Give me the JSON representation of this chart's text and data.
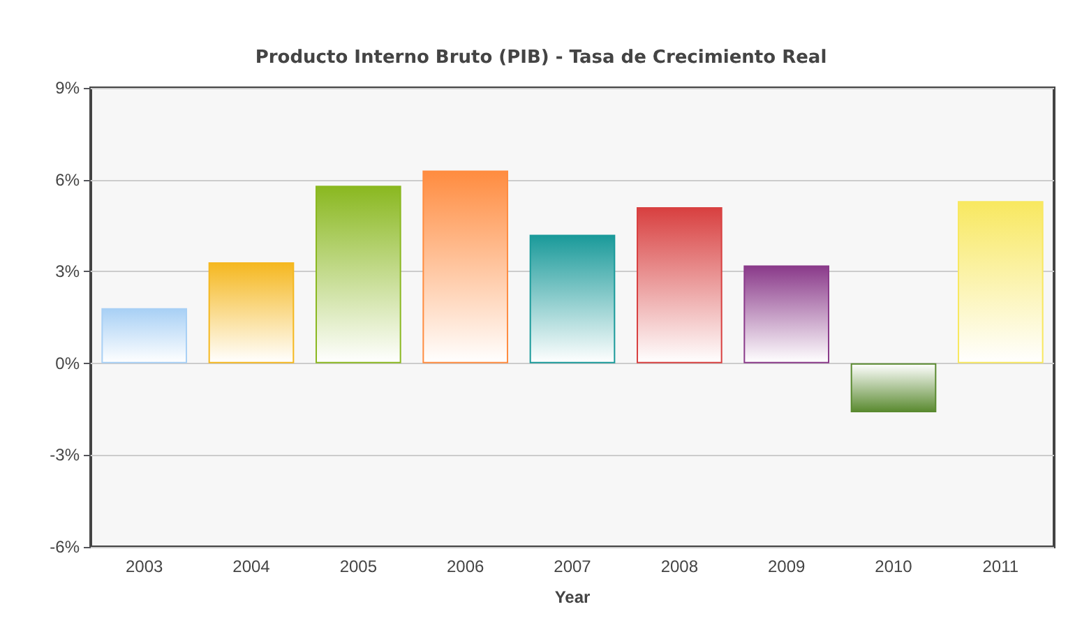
{
  "chart_data": {
    "type": "bar",
    "title": "Producto Interno Bruto (PIB) - Tasa de Crecimiento Real",
    "xlabel": "Year",
    "categories": [
      "2003",
      "2004",
      "2005",
      "2006",
      "2007",
      "2008",
      "2009",
      "2010",
      "2011"
    ],
    "values": [
      1.8,
      3.3,
      5.8,
      6.3,
      4.2,
      5.1,
      3.2,
      -1.6,
      5.3
    ],
    "colors": [
      "#a8d0f5",
      "#f5b820",
      "#8ab820",
      "#ff8c40",
      "#1a9a9a",
      "#d84040",
      "#8a3a8a",
      "#5a8a30",
      "#f8e860"
    ],
    "ylim": [
      -6,
      9
    ],
    "yticks": [
      {
        "value": -6,
        "label": "-6%"
      },
      {
        "value": -3,
        "label": "-3%"
      },
      {
        "value": 0,
        "label": "0%"
      },
      {
        "value": 3,
        "label": "3%"
      },
      {
        "value": 6,
        "label": "6%"
      },
      {
        "value": 9,
        "label": "9%"
      }
    ],
    "grid": "y"
  }
}
